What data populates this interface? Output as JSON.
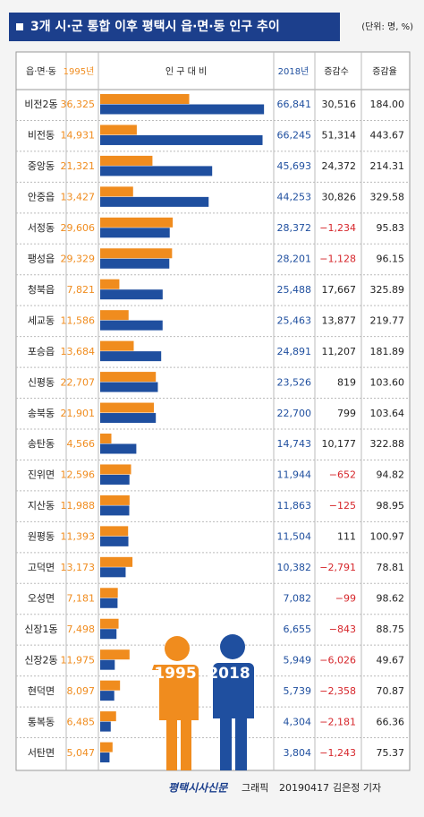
{
  "chart_data": {
    "type": "bar",
    "title": "3개 시·군 통합 이후 평택시 읍·면·동 인구 추이",
    "unit": "(단위: 명, %)",
    "category_header": "읍·면·동",
    "bar_header": "인 구 대 비",
    "categories": [
      "비전2동",
      "비전동",
      "중앙동",
      "안중읍",
      "서정동",
      "팽성읍",
      "청북읍",
      "세교동",
      "포승읍",
      "신평동",
      "송북동",
      "송탄동",
      "진위면",
      "지산동",
      "원평동",
      "고덕면",
      "오성면",
      "신장1동",
      "신장2동",
      "현덕면",
      "통복동",
      "서탄면"
    ],
    "series": [
      {
        "name": "1995",
        "header": "1995년",
        "color": "#f08c1e",
        "values": [
          36325,
          14931,
          21321,
          13427,
          29606,
          29329,
          7821,
          11586,
          13684,
          22707,
          21901,
          4566,
          12596,
          11988,
          11393,
          13173,
          7181,
          7498,
          11975,
          8097,
          6485,
          5047
        ],
        "value_labels": [
          "36,325",
          "14,931",
          "21,321",
          "13,427",
          "29,606",
          "29,329",
          "7,821",
          "11,586",
          "13,684",
          "22,707",
          "21,901",
          "4,566",
          "12,596",
          "11,988",
          "11,393",
          "13,173",
          "7,181",
          "7,498",
          "11,975",
          "8,097",
          "6,485",
          "5,047"
        ]
      },
      {
        "name": "2018",
        "header": "2018년",
        "color": "#1f4f9f",
        "values": [
          66841,
          66245,
          45693,
          44253,
          28372,
          28201,
          25488,
          25463,
          24891,
          23526,
          22700,
          14743,
          11944,
          11863,
          11504,
          10382,
          7082,
          6655,
          5949,
          5739,
          4304,
          3804
        ],
        "value_labels": [
          "66,841",
          "66,245",
          "45,693",
          "44,253",
          "28,372",
          "28,201",
          "25,488",
          "25,463",
          "24,891",
          "23,526",
          "22,700",
          "14,743",
          "11,944",
          "11,863",
          "11,504",
          "10,382",
          "7,082",
          "6,655",
          "5,949",
          "5,739",
          "4,304",
          "3,804"
        ]
      }
    ],
    "change": {
      "header": "증감수",
      "labels": [
        "30,516",
        "51,314",
        "24,372",
        "30,826",
        "−1,234",
        "−1,128",
        "17,667",
        "13,877",
        "11,207",
        "819",
        "799",
        "10,177",
        "−652",
        "−125",
        "111",
        "−2,791",
        "−99",
        "−843",
        "−6,026",
        "−2,358",
        "−2,181",
        "−1,243"
      ]
    },
    "rate": {
      "header": "증감율",
      "labels": [
        "184.00",
        "443.67",
        "214.31",
        "329.58",
        "95.83",
        "96.15",
        "325.89",
        "219.77",
        "181.89",
        "103.60",
        "103.64",
        "322.88",
        "94.82",
        "98.95",
        "100.97",
        "78.81",
        "98.62",
        "88.75",
        "49.67",
        "70.87",
        "66.36",
        "75.37"
      ]
    },
    "footer": {
      "paper": "평택시사신문",
      "kind": "그래픽",
      "date": "20190417",
      "author": "김은정 기자"
    }
  }
}
